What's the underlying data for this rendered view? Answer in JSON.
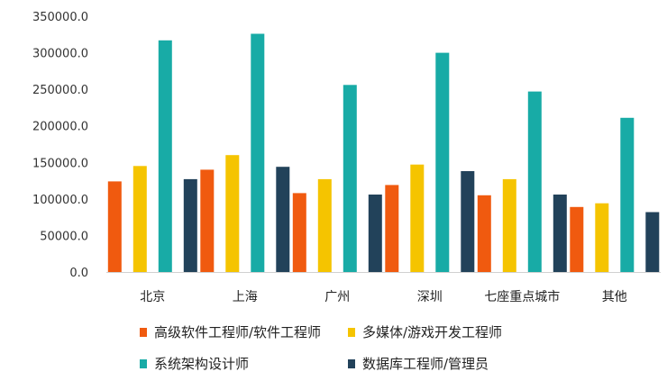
{
  "chart_data": {
    "type": "bar",
    "title": "",
    "xlabel": "",
    "ylabel": "",
    "ylim": [
      0,
      350000
    ],
    "yticks": [
      "0.0",
      "50000.0",
      "100000.0",
      "150000.0",
      "200000.0",
      "250000.0",
      "300000.0",
      "350000.0"
    ],
    "grid": false,
    "legend_position": "bottom",
    "categories": [
      "北京",
      "上海",
      "广州",
      "深圳",
      "七座重点城市",
      "其他"
    ],
    "series": [
      {
        "name": "高级软件工程师/软件工程师",
        "color": "#f05a0f",
        "values": [
          124000,
          140000,
          108000,
          119000,
          105000,
          89000
        ]
      },
      {
        "name": "多媒体/游戏开发工程师",
        "color": "#f5c400",
        "values": [
          145000,
          160000,
          127000,
          147000,
          127000,
          94000
        ]
      },
      {
        "name": "系统架构设计师",
        "color": "#18aba6",
        "values": [
          317000,
          326000,
          256000,
          300000,
          247000,
          211000
        ]
      },
      {
        "name": "数据库工程师/管理员",
        "color": "#22425a",
        "values": [
          127000,
          144000,
          106000,
          138000,
          106000,
          82000
        ]
      }
    ]
  }
}
